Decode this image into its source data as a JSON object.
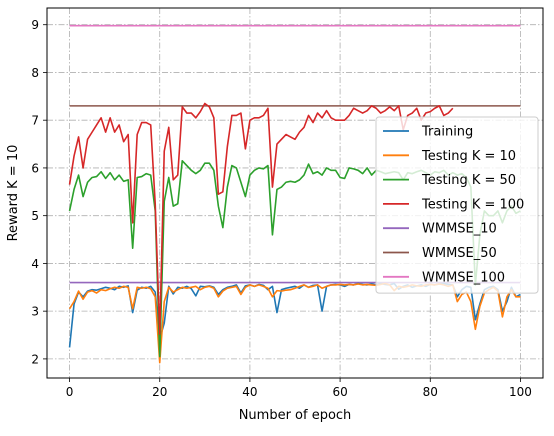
{
  "chart_data": {
    "type": "line",
    "title": "",
    "xlabel": "Number of epoch",
    "ylabel": "Reward K = 10",
    "xlim": [
      -5,
      105
    ],
    "ylim": [
      1.6,
      9.35
    ],
    "xticks": [
      0,
      20,
      40,
      60,
      80,
      100
    ],
    "yticks": [
      2,
      3,
      4,
      5,
      6,
      7,
      8,
      9
    ],
    "grid": true,
    "grid_style": "dash-dot",
    "legend_position": "right",
    "series": [
      {
        "name": "Training",
        "color": "#1f77b4",
        "x": [
          0,
          1,
          2,
          3,
          4,
          5,
          6,
          7,
          8,
          9,
          10,
          11,
          12,
          13,
          14,
          15,
          16,
          17,
          18,
          19,
          20,
          21,
          22,
          23,
          24,
          25,
          26,
          27,
          28,
          29,
          30,
          31,
          32,
          33,
          34,
          35,
          36,
          37,
          38,
          39,
          40,
          41,
          42,
          43,
          44,
          45,
          46,
          47,
          48,
          49,
          50,
          51,
          52,
          53,
          54,
          55,
          56,
          57,
          58,
          59,
          60,
          61,
          62,
          63,
          64,
          65,
          66,
          67,
          68,
          69,
          70,
          71,
          72,
          73,
          74,
          75,
          76,
          77,
          78,
          79,
          80,
          81,
          82,
          83,
          84,
          85,
          86,
          87,
          88,
          89,
          90,
          91,
          92,
          93,
          94,
          95,
          96,
          97,
          98,
          99,
          100
        ],
        "values": [
          2.24,
          3.15,
          3.4,
          3.3,
          3.42,
          3.45,
          3.44,
          3.47,
          3.5,
          3.48,
          3.45,
          3.52,
          3.5,
          3.53,
          2.97,
          3.44,
          3.5,
          3.48,
          3.52,
          3.4,
          2.42,
          2.75,
          3.52,
          3.36,
          3.5,
          3.48,
          3.52,
          3.47,
          3.32,
          3.52,
          3.51,
          3.53,
          3.5,
          3.35,
          3.45,
          3.5,
          3.52,
          3.55,
          3.38,
          3.53,
          3.55,
          3.52,
          3.56,
          3.54,
          3.45,
          3.52,
          2.97,
          3.45,
          3.48,
          3.5,
          3.52,
          3.48,
          3.55,
          3.5,
          3.54,
          3.55,
          3.0,
          3.52,
          3.55,
          3.56,
          3.55,
          3.52,
          3.56,
          3.55,
          3.58,
          3.56,
          3.55,
          3.57,
          3.55,
          3.58,
          3.56,
          3.55,
          3.58,
          3.46,
          3.52,
          3.55,
          3.5,
          3.53,
          3.55,
          3.52,
          3.56,
          3.55,
          3.57,
          3.58,
          3.56,
          3.55,
          3.3,
          3.45,
          3.52,
          3.5,
          2.82,
          3.15,
          3.45,
          3.5,
          3.52,
          3.45,
          3.0,
          3.2,
          3.5,
          3.3,
          3.35
        ]
      },
      {
        "name": "Testing K = 10",
        "color": "#ff7f0e",
        "x": [
          0,
          1,
          2,
          3,
          4,
          5,
          6,
          7,
          8,
          9,
          10,
          11,
          12,
          13,
          14,
          15,
          16,
          17,
          18,
          19,
          20,
          21,
          22,
          23,
          24,
          25,
          26,
          27,
          28,
          29,
          30,
          31,
          32,
          33,
          34,
          35,
          36,
          37,
          38,
          39,
          40,
          41,
          42,
          43,
          44,
          45,
          46,
          47,
          48,
          49,
          50,
          51,
          52,
          53,
          54,
          55,
          56,
          57,
          58,
          59,
          60,
          61,
          62,
          63,
          64,
          65,
          66,
          67,
          68,
          69,
          70,
          71,
          72,
          73,
          74,
          75,
          76,
          77,
          78,
          79,
          80,
          81,
          82,
          83,
          84,
          85,
          86,
          87,
          88,
          89,
          90,
          91,
          92,
          93,
          94,
          95,
          96,
          97,
          98,
          99,
          100
        ],
        "values": [
          3.05,
          3.2,
          3.42,
          3.25,
          3.4,
          3.43,
          3.38,
          3.45,
          3.43,
          3.47,
          3.5,
          3.48,
          3.52,
          3.5,
          3.05,
          3.5,
          3.48,
          3.5,
          3.47,
          3.3,
          1.92,
          3.2,
          3.5,
          3.4,
          3.45,
          3.5,
          3.48,
          3.5,
          3.52,
          3.45,
          3.5,
          3.52,
          3.48,
          3.3,
          3.42,
          3.48,
          3.5,
          3.52,
          3.35,
          3.5,
          3.55,
          3.52,
          3.55,
          3.52,
          3.48,
          3.3,
          3.43,
          3.42,
          3.44,
          3.45,
          3.48,
          3.52,
          3.55,
          3.5,
          3.52,
          3.55,
          3.48,
          3.52,
          3.55,
          3.55,
          3.56,
          3.55,
          3.56,
          3.55,
          3.57,
          3.55,
          3.56,
          3.55,
          3.54,
          3.56,
          3.58,
          3.55,
          3.43,
          3.52,
          3.5,
          3.52,
          3.55,
          3.53,
          3.52,
          3.55,
          3.56,
          3.55,
          3.57,
          3.55,
          3.52,
          3.55,
          3.2,
          3.35,
          3.4,
          3.2,
          2.62,
          3.1,
          3.38,
          3.45,
          3.5,
          3.42,
          2.88,
          3.3,
          3.45,
          3.3,
          3.3
        ]
      },
      {
        "name": "Testing K = 50",
        "color": "#2ca02c",
        "x": [
          0,
          1,
          2,
          3,
          4,
          5,
          6,
          7,
          8,
          9,
          10,
          11,
          12,
          13,
          14,
          15,
          16,
          17,
          18,
          19,
          20,
          21,
          22,
          23,
          24,
          25,
          26,
          27,
          28,
          29,
          30,
          31,
          32,
          33,
          34,
          35,
          36,
          37,
          38,
          39,
          40,
          41,
          42,
          43,
          44,
          45,
          46,
          47,
          48,
          49,
          50,
          51,
          52,
          53,
          54,
          55,
          56,
          57,
          58,
          59,
          60,
          61,
          62,
          63,
          64,
          65,
          66,
          67,
          68,
          69,
          70,
          71,
          72,
          73,
          74,
          75,
          76,
          77,
          78,
          79,
          80,
          81,
          82,
          83,
          84,
          85,
          86,
          87,
          88,
          89,
          90,
          91,
          92,
          93,
          94,
          95,
          96,
          97,
          98,
          99,
          100
        ],
        "values": [
          5.1,
          5.55,
          5.85,
          5.4,
          5.7,
          5.8,
          5.82,
          5.92,
          5.78,
          5.9,
          5.75,
          5.85,
          5.72,
          5.75,
          4.32,
          5.8,
          5.82,
          5.88,
          5.85,
          5.1,
          2.05,
          5.3,
          5.8,
          5.2,
          5.25,
          6.15,
          6.05,
          5.95,
          5.88,
          5.95,
          6.1,
          6.1,
          5.95,
          5.2,
          4.75,
          5.6,
          6.05,
          6.0,
          5.7,
          5.4,
          5.85,
          5.95,
          6.0,
          5.98,
          6.05,
          4.6,
          5.55,
          5.6,
          5.7,
          5.72,
          5.7,
          5.75,
          5.85,
          6.08,
          5.88,
          5.92,
          5.85,
          6.0,
          5.95,
          5.95,
          5.8,
          5.78,
          6.0,
          5.98,
          5.95,
          5.88,
          6.0,
          5.85,
          5.95,
          5.92,
          5.88,
          5.9,
          5.92,
          5.9,
          5.75,
          5.9,
          5.88,
          5.92,
          5.95,
          5.9,
          5.85,
          5.92,
          5.9,
          5.95,
          5.85,
          5.9,
          5.85,
          5.88,
          5.8,
          5.6,
          3.55,
          4.6,
          5.1,
          5.0,
          5.0,
          5.1,
          4.85,
          5.1,
          5.2,
          5.05,
          5.1
        ]
      },
      {
        "name": "Testing K = 100",
        "color": "#d62728",
        "x": [
          0,
          1,
          2,
          3,
          4,
          5,
          6,
          7,
          8,
          9,
          10,
          11,
          12,
          13,
          14,
          15,
          16,
          17,
          18,
          19,
          20,
          21,
          22,
          23,
          24,
          25,
          26,
          27,
          28,
          29,
          30,
          31,
          32,
          33,
          34,
          35,
          36,
          37,
          38,
          39,
          40,
          41,
          42,
          43,
          44,
          45,
          46,
          47,
          48,
          49,
          50,
          51,
          52,
          53,
          54,
          55,
          56,
          57,
          58,
          59,
          60,
          61,
          62,
          63,
          64,
          65,
          66,
          67,
          68,
          69,
          70,
          71,
          72,
          73,
          74,
          75,
          76,
          77,
          78,
          79,
          80,
          81,
          82,
          83,
          84,
          85
        ],
        "values": [
          5.65,
          6.25,
          6.65,
          6.0,
          6.6,
          6.75,
          6.9,
          7.05,
          6.75,
          7.05,
          6.75,
          6.9,
          6.55,
          6.7,
          4.85,
          6.7,
          6.95,
          6.95,
          6.9,
          5.25,
          2.52,
          6.35,
          6.85,
          5.75,
          5.85,
          7.28,
          7.15,
          7.15,
          7.05,
          7.18,
          7.35,
          7.28,
          7.05,
          5.45,
          5.5,
          6.45,
          7.1,
          7.1,
          7.15,
          6.4,
          7.0,
          7.05,
          7.05,
          7.1,
          7.25,
          5.6,
          6.5,
          6.6,
          6.7,
          6.65,
          6.6,
          6.75,
          6.85,
          7.1,
          6.95,
          7.15,
          7.05,
          7.2,
          7.05,
          7.0,
          7.0,
          7.0,
          7.1,
          7.25,
          7.2,
          7.15,
          7.2,
          7.3,
          7.25,
          7.15,
          7.2,
          7.28,
          7.2,
          7.3,
          6.8,
          7.1,
          7.15,
          7.25,
          7.0,
          7.15,
          7.18,
          7.25,
          7.3,
          7.1,
          7.15,
          7.25
        ]
      },
      {
        "name": "WMMSE_10",
        "color": "#9467bd",
        "x": [
          0,
          100
        ],
        "values": [
          3.6,
          3.6
        ]
      },
      {
        "name": "WMMSE_50",
        "color": "#8c564b",
        "x": [
          0,
          100
        ],
        "values": [
          7.3,
          7.3
        ]
      },
      {
        "name": "WMMSE_100",
        "color": "#e377c2",
        "x": [
          0,
          100
        ],
        "values": [
          8.98,
          8.98
        ]
      }
    ]
  }
}
